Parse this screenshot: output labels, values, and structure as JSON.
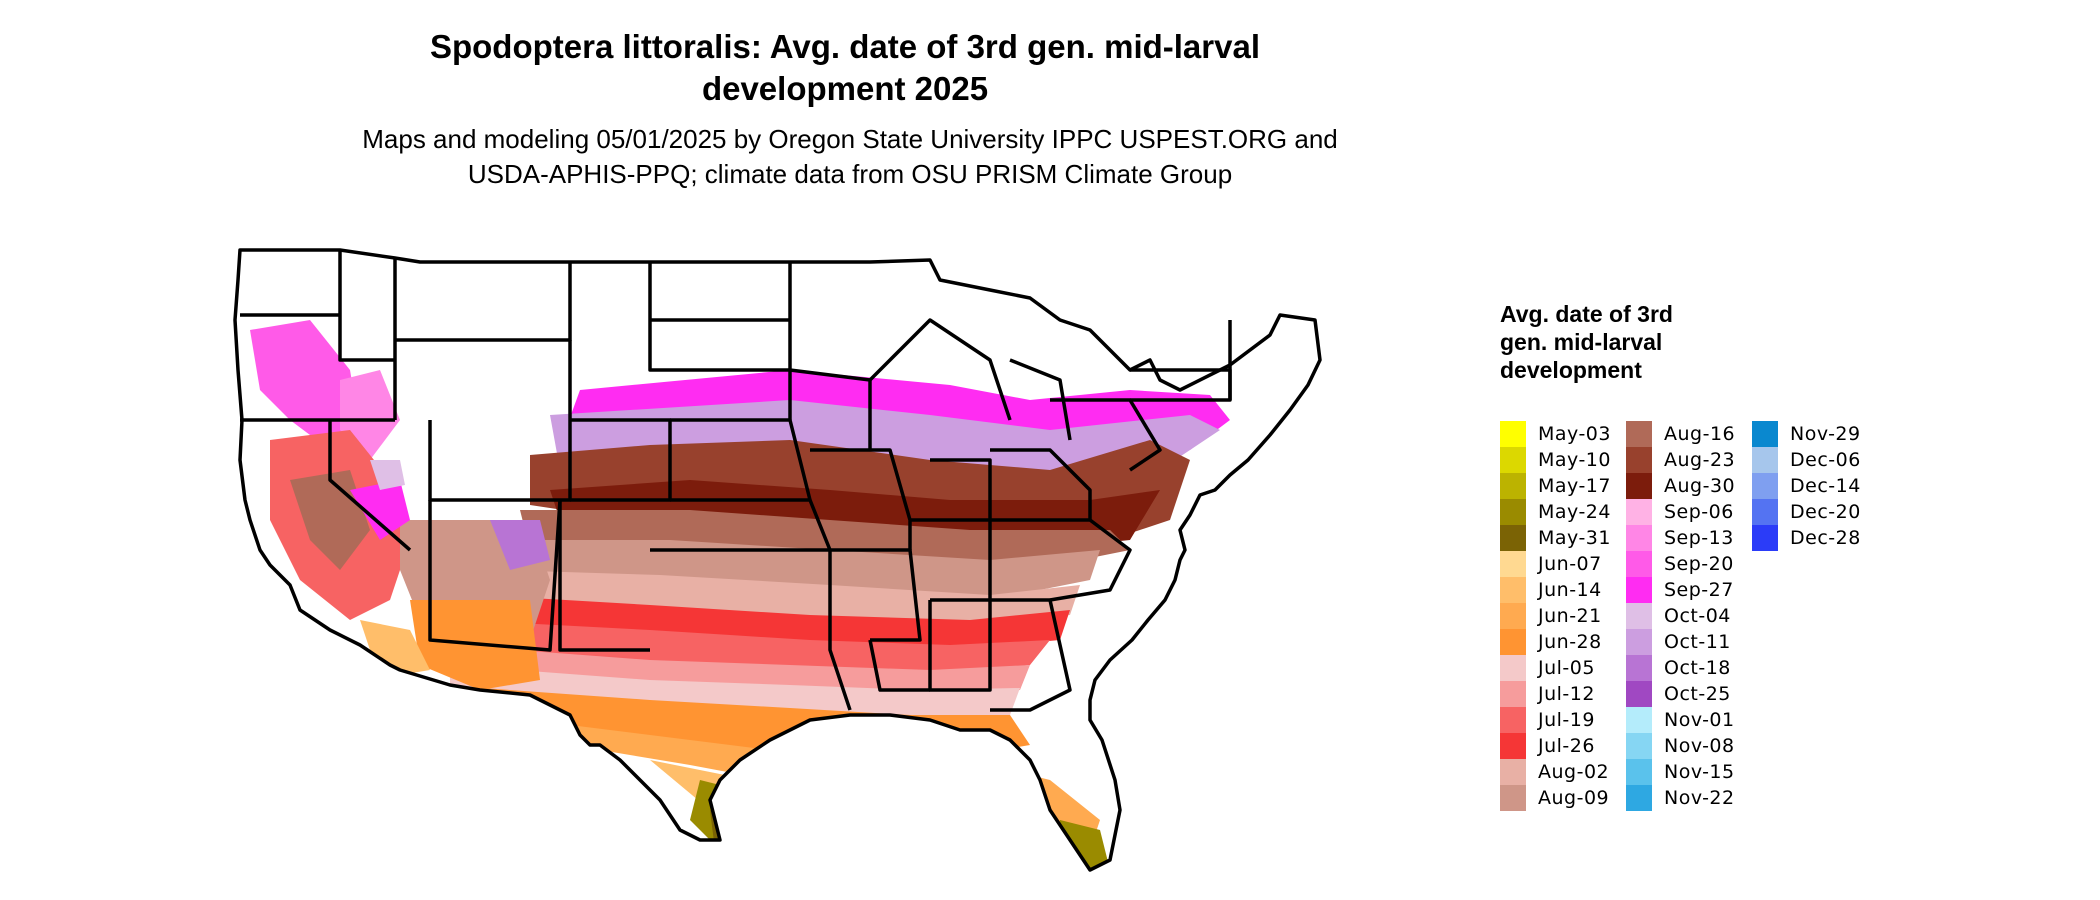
{
  "title": "Spodoptera littoralis: Avg. date of 3rd gen. mid-larval development 2025",
  "subtitle": "Maps and modeling 05/01/2025 by Oregon State University IPPC USPEST.ORG and USDA-APHIS-PPQ; climate data from OSU PRISM Climate Group",
  "legend": {
    "title": "Avg. date of 3rd gen. mid-larval development",
    "columns": [
      [
        {
          "label": "May-03",
          "color": "#ffff00"
        },
        {
          "label": "May-10",
          "color": "#dcd800"
        },
        {
          "label": "May-17",
          "color": "#bcb300"
        },
        {
          "label": "May-24",
          "color": "#9a8b00"
        },
        {
          "label": "May-31",
          "color": "#7b6305"
        },
        {
          "label": "Jun-07",
          "color": "#ffd991"
        },
        {
          "label": "Jun-14",
          "color": "#ffbe6a"
        },
        {
          "label": "Jun-21",
          "color": "#ffaa50"
        },
        {
          "label": "Jun-28",
          "color": "#ff9432"
        },
        {
          "label": "Jul-05",
          "color": "#f4c9c9"
        },
        {
          "label": "Jul-12",
          "color": "#f69c9c"
        },
        {
          "label": "Jul-19",
          "color": "#f76363"
        },
        {
          "label": "Jul-26",
          "color": "#f53636"
        },
        {
          "label": "Aug-02",
          "color": "#e8b0a5"
        },
        {
          "label": "Aug-09",
          "color": "#cf9688"
        }
      ],
      [
        {
          "label": "Aug-16",
          "color": "#b06a58"
        },
        {
          "label": "Aug-23",
          "color": "#98412d"
        },
        {
          "label": "Aug-30",
          "color": "#7c1c0c"
        },
        {
          "label": "Sep-06",
          "color": "#ffb2e5"
        },
        {
          "label": "Sep-13",
          "color": "#ff86e6"
        },
        {
          "label": "Sep-20",
          "color": "#ff5ae8"
        },
        {
          "label": "Sep-27",
          "color": "#ff2cf2"
        },
        {
          "label": "Oct-04",
          "color": "#dfbfe6"
        },
        {
          "label": "Oct-11",
          "color": "#cc9ee0"
        },
        {
          "label": "Oct-18",
          "color": "#b874d4"
        },
        {
          "label": "Oct-25",
          "color": "#a048c2"
        },
        {
          "label": "Nov-01",
          "color": "#b4ecfb"
        },
        {
          "label": "Nov-08",
          "color": "#86d6f3"
        },
        {
          "label": "Nov-15",
          "color": "#5ac2ec"
        },
        {
          "label": "Nov-22",
          "color": "#2ea8e2"
        }
      ],
      [
        {
          "label": "Nov-29",
          "color": "#0a88cf"
        },
        {
          "label": "Dec-06",
          "color": "#a6c6ec"
        },
        {
          "label": "Dec-14",
          "color": "#7f9ff0"
        },
        {
          "label": "Dec-20",
          "color": "#5473f2"
        },
        {
          "label": "Dec-28",
          "color": "#2b3cf8"
        }
      ]
    ]
  }
}
